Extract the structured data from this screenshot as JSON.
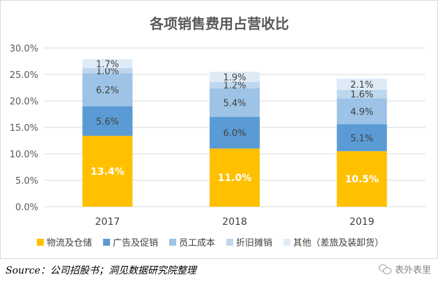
{
  "chart_data": {
    "type": "bar",
    "stacked": true,
    "title": "各项销售费用占营收比",
    "categories": [
      "2017",
      "2018",
      "2019"
    ],
    "y_ticks": [
      "0.0%",
      "5.0%",
      "10.0%",
      "15.0%",
      "20.0%",
      "25.0%",
      "30.0%"
    ],
    "ylim": [
      0,
      30
    ],
    "grid": true,
    "legend_position": "bottom",
    "series": [
      {
        "name": "物流及仓储",
        "color": "#ffc000",
        "values": [
          13.4,
          11.0,
          10.5
        ],
        "labels": [
          "13.4%",
          "11.0%",
          "10.5%"
        ],
        "label_color": "#ffffff"
      },
      {
        "name": "广告及促销",
        "color": "#5b9bd5",
        "values": [
          5.6,
          6.0,
          5.1
        ],
        "labels": [
          "5.6%",
          "6.0%",
          "5.1%"
        ],
        "label_color": "#404040"
      },
      {
        "name": "员工成本",
        "color": "#9dc3e6",
        "values": [
          6.2,
          5.4,
          4.9
        ],
        "labels": [
          "6.2%",
          "5.4%",
          "4.9%"
        ],
        "label_color": "#404040"
      },
      {
        "name": "折旧摊销",
        "color": "#bdd7ee",
        "values": [
          1.0,
          1.2,
          1.6
        ],
        "labels": [
          "1.0%",
          "1.2%",
          "1.6%"
        ],
        "label_color": "#404040"
      },
      {
        "name": "其他（差旅及装卸货）",
        "color": "#deebf7",
        "values": [
          1.7,
          1.9,
          2.1
        ],
        "labels": [
          "1.7%",
          "1.9%",
          "2.1%"
        ],
        "label_color": "#404040"
      }
    ]
  },
  "source_text": "Source：公司招股书；洞见数据研究院整理",
  "watermark_text": "表外表里",
  "watermark_icon": "wechat-icon"
}
